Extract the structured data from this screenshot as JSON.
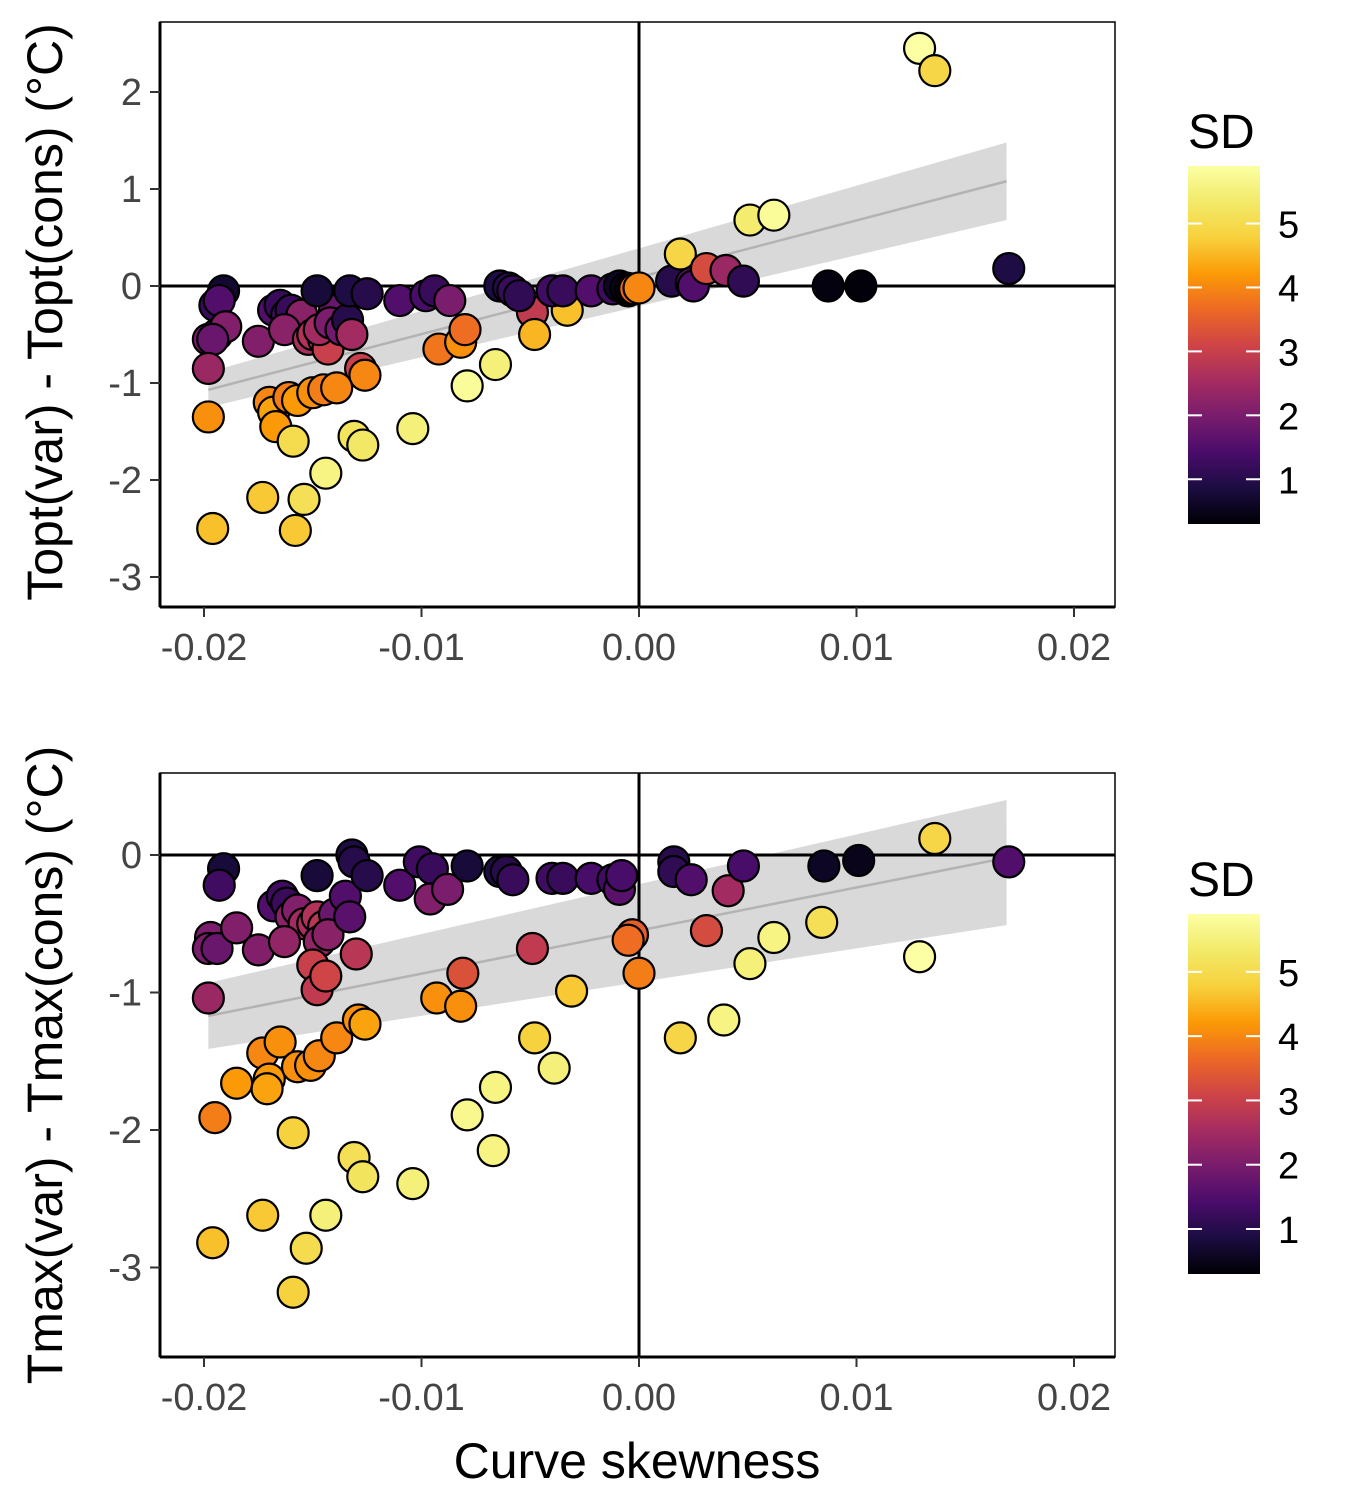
{
  "chart_data": [
    {
      "type": "scatter",
      "xlabel": "Curve skewness",
      "ylabel": "Topt(var) - Topt(cons) (°C)",
      "xlim": [
        -0.022,
        0.022
      ],
      "ylim": [
        -3.3,
        2.7
      ],
      "xticks": [
        -0.02,
        -0.01,
        0.0,
        0.01,
        0.02
      ],
      "xtick_labels": [
        "-0.02",
        "-0.01",
        "0.00",
        "0.01",
        "0.02"
      ],
      "yticks": [
        -3,
        -2,
        -1,
        0,
        1,
        2
      ],
      "ytick_labels": [
        "-3",
        "-2",
        "-1",
        "0",
        "1",
        "2"
      ],
      "reference_lines": {
        "x": 0,
        "y": 0
      },
      "trend": {
        "x0": -0.0198,
        "y0": -1.07,
        "x1": 0.0169,
        "y1": 1.08,
        "ci_lower": [
          -1.25,
          0.68
        ],
        "ci_upper": [
          -0.89,
          1.48
        ]
      },
      "legend": {
        "title": "SD",
        "labels": [
          "1",
          "2",
          "3",
          "4",
          "5"
        ],
        "min": 0.3,
        "max": 5.9
      },
      "points": [
        [
          -0.0191,
          -0.05,
          0.7
        ],
        [
          -0.0195,
          -0.2,
          1.2
        ],
        [
          -0.0193,
          -0.15,
          1.5
        ],
        [
          -0.0198,
          -0.55,
          2.0
        ],
        [
          -0.0194,
          -0.5,
          2.0
        ],
        [
          -0.019,
          -0.42,
          2.1
        ],
        [
          -0.0196,
          -0.55,
          1.8
        ],
        [
          -0.0198,
          -0.85,
          2.4
        ],
        [
          -0.0175,
          -0.57,
          2.1
        ],
        [
          -0.0168,
          -0.25,
          1.5
        ],
        [
          -0.0165,
          -0.2,
          1.2
        ],
        [
          -0.0162,
          -0.3,
          1.4
        ],
        [
          -0.016,
          -0.25,
          1.2
        ],
        [
          -0.0157,
          -0.4,
          2.0
        ],
        [
          -0.0155,
          -0.3,
          2.2
        ],
        [
          -0.0163,
          -0.45,
          2.2
        ],
        [
          -0.0152,
          -0.55,
          2.6
        ],
        [
          -0.015,
          -0.5,
          2.7
        ],
        [
          -0.0145,
          -0.55,
          2.8
        ],
        [
          -0.0143,
          -0.65,
          3.0
        ],
        [
          -0.0147,
          -0.45,
          2.5
        ],
        [
          -0.014,
          -0.25,
          1.8
        ],
        [
          -0.0142,
          -0.38,
          2.0
        ],
        [
          -0.0137,
          -0.45,
          1.9
        ],
        [
          -0.0134,
          -0.35,
          1.0
        ],
        [
          -0.0132,
          -0.5,
          2.5
        ],
        [
          -0.0148,
          -0.05,
          0.8
        ],
        [
          -0.0133,
          -0.05,
          0.9
        ],
        [
          -0.0125,
          -0.08,
          1.0
        ],
        [
          -0.011,
          -0.15,
          1.5
        ],
        [
          -0.0098,
          -0.1,
          1.4
        ],
        [
          -0.0094,
          -0.05,
          1.2
        ],
        [
          -0.0087,
          -0.15,
          2.0
        ],
        [
          -0.0128,
          -0.85,
          3.0
        ],
        [
          -0.0126,
          -0.92,
          4.0
        ],
        [
          -0.0092,
          -0.65,
          3.8
        ],
        [
          -0.0082,
          -0.58,
          4.1
        ],
        [
          -0.008,
          -0.45,
          3.7
        ],
        [
          -0.0049,
          -0.27,
          2.9
        ],
        [
          -0.0048,
          -0.5,
          4.5
        ],
        [
          -0.0033,
          -0.25,
          4.6
        ],
        [
          -0.0064,
          0.0,
          0.9
        ],
        [
          -0.006,
          -0.02,
          1.0
        ],
        [
          -0.0058,
          -0.05,
          1.2
        ],
        [
          -0.0055,
          -0.1,
          1.1
        ],
        [
          -0.004,
          -0.05,
          1.3
        ],
        [
          -0.0035,
          -0.05,
          1.2
        ],
        [
          -0.0022,
          -0.05,
          1.5
        ],
        [
          -0.0012,
          -0.03,
          1.3
        ],
        [
          -0.0005,
          -0.05,
          1.4
        ],
        [
          -0.0009,
          0.0,
          0.6
        ],
        [
          -0.0006,
          -0.02,
          0.5
        ],
        [
          -0.0004,
          -0.03,
          0.4
        ],
        [
          -0.0002,
          -0.03,
          3.6
        ],
        [
          0.0,
          -0.02,
          4.0
        ],
        [
          -0.0198,
          -1.35,
          4.1
        ],
        [
          -0.017,
          -1.2,
          4.0
        ],
        [
          -0.0168,
          -1.3,
          4.3
        ],
        [
          -0.0167,
          -1.45,
          4.2
        ],
        [
          -0.0161,
          -1.15,
          3.9
        ],
        [
          -0.0157,
          -1.18,
          4.2
        ],
        [
          -0.015,
          -1.1,
          4.1
        ],
        [
          -0.0145,
          -1.07,
          3.9
        ],
        [
          -0.0139,
          -1.05,
          4.0
        ],
        [
          -0.0196,
          -2.5,
          4.6
        ],
        [
          -0.0173,
          -2.18,
          4.7
        ],
        [
          -0.0159,
          -1.6,
          5.0
        ],
        [
          -0.0158,
          -2.52,
          4.7
        ],
        [
          -0.0154,
          -2.2,
          5.1
        ],
        [
          -0.0144,
          -1.93,
          5.6
        ],
        [
          -0.0131,
          -1.55,
          5.2
        ],
        [
          -0.0127,
          -1.64,
          5.3
        ],
        [
          -0.0104,
          -1.47,
          5.5
        ],
        [
          -0.0079,
          -1.03,
          5.8
        ],
        [
          -0.0066,
          -0.81,
          5.5
        ],
        [
          0.0015,
          0.05,
          1.0
        ],
        [
          0.0024,
          0.03,
          1.6
        ],
        [
          0.0019,
          0.33,
          4.9
        ],
        [
          0.0025,
          -0.0,
          1.5
        ],
        [
          0.0031,
          0.18,
          3.2
        ],
        [
          0.004,
          0.16,
          2.4
        ],
        [
          0.0048,
          0.05,
          1.1
        ],
        [
          0.0051,
          0.68,
          5.4
        ],
        [
          0.0062,
          0.73,
          5.8
        ],
        [
          0.0087,
          0.0,
          0.4
        ],
        [
          0.0102,
          0.0,
          0.35
        ],
        [
          0.0129,
          2.45,
          5.9
        ],
        [
          0.0136,
          2.22,
          4.9
        ],
        [
          0.017,
          0.18,
          0.9
        ]
      ]
    },
    {
      "type": "scatter",
      "xlabel": "Curve skewness",
      "ylabel": "Tmax(var) - Tmax(cons) (°C)",
      "xlim": [
        -0.022,
        0.022
      ],
      "ylim": [
        -3.68,
        0.6
      ],
      "xticks": [
        -0.02,
        -0.01,
        0.0,
        0.01,
        0.02
      ],
      "xtick_labels": [
        "-0.02",
        "-0.01",
        "0.00",
        "0.01",
        "0.02"
      ],
      "yticks": [
        -3,
        -2,
        -1,
        0
      ],
      "ytick_labels": [
        "-3",
        "-2",
        "-1",
        "0"
      ],
      "reference_lines": {
        "x": 0,
        "y": 0
      },
      "trend": {
        "x0": -0.0198,
        "y0": -1.17,
        "x1": 0.0169,
        "y1": -0.02,
        "ci_lower": [
          -1.41,
          -0.51
        ],
        "ci_upper": [
          -0.93,
          0.4
        ]
      },
      "legend": {
        "title": "SD",
        "labels": [
          "1",
          "2",
          "3",
          "4",
          "5"
        ],
        "min": 0.3,
        "max": 5.9
      },
      "points": [
        [
          -0.0191,
          -0.1,
          0.8
        ],
        [
          -0.0193,
          -0.22,
          1.3
        ],
        [
          -0.0197,
          -0.6,
          2.0
        ],
        [
          -0.0198,
          -0.68,
          2.0
        ],
        [
          -0.0194,
          -0.68,
          1.8
        ],
        [
          -0.0185,
          -0.53,
          2.1
        ],
        [
          -0.0175,
          -0.69,
          2.1
        ],
        [
          -0.0198,
          -1.04,
          2.4
        ],
        [
          -0.0168,
          -0.37,
          1.5
        ],
        [
          -0.0164,
          -0.3,
          1.3
        ],
        [
          -0.0162,
          -0.35,
          1.2
        ],
        [
          -0.016,
          -0.45,
          2.2
        ],
        [
          -0.0157,
          -0.4,
          2.1
        ],
        [
          -0.0154,
          -0.5,
          2.5
        ],
        [
          -0.0163,
          -0.63,
          2.3
        ],
        [
          -0.015,
          -0.5,
          2.6
        ],
        [
          -0.0148,
          -0.45,
          2.7
        ],
        [
          -0.0145,
          -0.52,
          2.8
        ],
        [
          -0.0147,
          -0.63,
          2.3
        ],
        [
          -0.014,
          -0.43,
          1.8
        ],
        [
          -0.0143,
          -0.58,
          2.2
        ],
        [
          -0.0135,
          -0.3,
          1.5
        ],
        [
          -0.0133,
          -0.45,
          1.6
        ],
        [
          -0.013,
          -0.72,
          2.8
        ],
        [
          -0.015,
          -0.8,
          3.0
        ],
        [
          -0.0148,
          -0.98,
          2.9
        ],
        [
          -0.0144,
          -0.88,
          3.1
        ],
        [
          -0.0148,
          -0.15,
          0.8
        ],
        [
          -0.0132,
          0.0,
          0.9
        ],
        [
          -0.0131,
          -0.05,
          1.0
        ],
        [
          -0.0125,
          -0.15,
          1.0
        ],
        [
          -0.011,
          -0.22,
          1.5
        ],
        [
          -0.0101,
          -0.05,
          1.3
        ],
        [
          -0.0095,
          -0.1,
          1.2
        ],
        [
          -0.0096,
          -0.32,
          2.1
        ],
        [
          -0.0088,
          -0.25,
          2.0
        ],
        [
          -0.0079,
          -0.08,
          0.8
        ],
        [
          -0.0064,
          -0.12,
          0.9
        ],
        [
          -0.0061,
          -0.12,
          1.0
        ],
        [
          -0.0058,
          -0.18,
          1.2
        ],
        [
          -0.004,
          -0.17,
          1.3
        ],
        [
          -0.0035,
          -0.17,
          1.2
        ],
        [
          -0.0022,
          -0.17,
          1.4
        ],
        [
          -0.0012,
          -0.18,
          1.3
        ],
        [
          -0.0009,
          -0.25,
          1.6
        ],
        [
          -0.0008,
          -0.15,
          1.4
        ],
        [
          -0.0081,
          -0.86,
          3.3
        ],
        [
          -0.0049,
          -0.68,
          2.9
        ],
        [
          -0.0003,
          -0.58,
          3.5
        ],
        [
          -0.0005,
          -0.62,
          3.7
        ],
        [
          0.0,
          -0.86,
          3.9
        ],
        [
          -0.0195,
          -1.91,
          3.9
        ],
        [
          -0.0173,
          -1.44,
          4.0
        ],
        [
          -0.017,
          -1.63,
          4.2
        ],
        [
          -0.0171,
          -1.7,
          4.3
        ],
        [
          -0.0165,
          -1.36,
          4.1
        ],
        [
          -0.0157,
          -1.54,
          4.1
        ],
        [
          -0.0151,
          -1.53,
          4.1
        ],
        [
          -0.0147,
          -1.46,
          4.0
        ],
        [
          -0.0139,
          -1.33,
          4.0
        ],
        [
          -0.0129,
          -1.2,
          4.1
        ],
        [
          -0.0126,
          -1.23,
          4.3
        ],
        [
          -0.0093,
          -1.04,
          4.1
        ],
        [
          -0.0082,
          -1.1,
          4.1
        ],
        [
          -0.0185,
          -1.66,
          4.2
        ],
        [
          -0.0196,
          -2.82,
          4.6
        ],
        [
          -0.0173,
          -2.62,
          4.7
        ],
        [
          -0.0159,
          -2.02,
          4.8
        ],
        [
          -0.0159,
          -3.18,
          4.8
        ],
        [
          -0.0153,
          -2.86,
          5.0
        ],
        [
          -0.0144,
          -2.62,
          5.5
        ],
        [
          -0.0131,
          -2.2,
          5.1
        ],
        [
          -0.0127,
          -2.34,
          5.2
        ],
        [
          -0.0104,
          -2.39,
          5.5
        ],
        [
          -0.0079,
          -1.89,
          5.7
        ],
        [
          -0.0066,
          -1.69,
          5.6
        ],
        [
          -0.0067,
          -2.15,
          5.6
        ],
        [
          -0.0048,
          -1.33,
          4.8
        ],
        [
          -0.0039,
          -1.55,
          5.5
        ],
        [
          -0.0031,
          -0.99,
          4.7
        ],
        [
          0.0016,
          -0.05,
          1.0
        ],
        [
          0.0016,
          -0.12,
          1.1
        ],
        [
          0.0024,
          -0.18,
          1.5
        ],
        [
          0.0041,
          -0.26,
          2.5
        ],
        [
          0.0048,
          -0.08,
          1.4
        ],
        [
          0.0031,
          -0.55,
          3.2
        ],
        [
          0.0019,
          -1.33,
          4.9
        ],
        [
          0.0039,
          -1.2,
          5.6
        ],
        [
          0.0051,
          -0.79,
          5.5
        ],
        [
          0.0062,
          -0.6,
          5.6
        ],
        [
          0.0085,
          -0.08,
          0.6
        ],
        [
          0.0101,
          -0.04,
          0.5
        ],
        [
          0.0084,
          -0.49,
          5.1
        ],
        [
          0.0129,
          -0.74,
          5.9
        ],
        [
          0.0136,
          0.12,
          4.9
        ],
        [
          0.017,
          -0.05,
          1.5
        ]
      ]
    }
  ]
}
